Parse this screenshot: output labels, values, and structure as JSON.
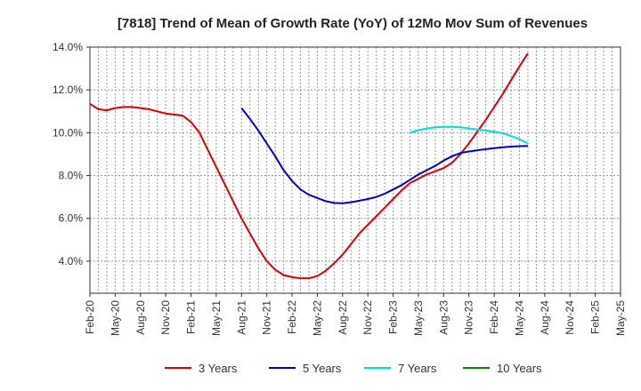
{
  "chart_data": {
    "type": "line",
    "title": "[7818]  Trend of Mean of Growth Rate (YoY) of 12Mo Mov Sum of Revenues",
    "xlabel": "",
    "ylabel": "",
    "ylim": [
      2.5,
      14.0
    ],
    "yticks": [
      4.0,
      6.0,
      8.0,
      10.0,
      12.0,
      14.0
    ],
    "ytick_labels": [
      "4.0%",
      "6.0%",
      "8.0%",
      "10.0%",
      "12.0%",
      "14.0%"
    ],
    "x_tick_labels": [
      "Feb-20",
      "May-20",
      "Aug-20",
      "Nov-20",
      "Feb-21",
      "May-21",
      "Aug-21",
      "Nov-21",
      "Feb-22",
      "May-22",
      "Aug-22",
      "Nov-22",
      "Feb-23",
      "May-23",
      "Aug-23",
      "Nov-23",
      "Feb-24",
      "May-24",
      "Aug-24",
      "Nov-24",
      "Feb-25",
      "May-25"
    ],
    "x_range_months": [
      0,
      63
    ],
    "grid": true,
    "legend_position": "bottom",
    "series": [
      {
        "name": "3 Years",
        "color": "#dd0000",
        "points": [
          [
            0,
            11.35
          ],
          [
            1,
            11.1
          ],
          [
            2,
            11.05
          ],
          [
            3,
            11.15
          ],
          [
            4,
            11.2
          ],
          [
            5,
            11.2
          ],
          [
            6,
            11.15
          ],
          [
            7,
            11.1
          ],
          [
            8,
            11.0
          ],
          [
            9,
            10.9
          ],
          [
            10,
            10.85
          ],
          [
            11,
            10.8
          ],
          [
            12,
            10.5
          ],
          [
            13,
            10.0
          ],
          [
            14,
            9.2
          ],
          [
            15,
            8.4
          ],
          [
            16,
            7.6
          ],
          [
            17,
            6.8
          ],
          [
            18,
            6.0
          ],
          [
            19,
            5.3
          ],
          [
            20,
            4.6
          ],
          [
            21,
            4.0
          ],
          [
            22,
            3.6
          ],
          [
            23,
            3.35
          ],
          [
            24,
            3.25
          ],
          [
            25,
            3.2
          ],
          [
            26,
            3.2
          ],
          [
            27,
            3.3
          ],
          [
            28,
            3.55
          ],
          [
            29,
            3.9
          ],
          [
            30,
            4.3
          ],
          [
            31,
            4.8
          ],
          [
            32,
            5.3
          ],
          [
            33,
            5.7
          ],
          [
            34,
            6.1
          ],
          [
            35,
            6.5
          ],
          [
            36,
            6.9
          ],
          [
            37,
            7.3
          ],
          [
            38,
            7.65
          ],
          [
            39,
            7.85
          ],
          [
            40,
            8.05
          ],
          [
            41,
            8.2
          ],
          [
            42,
            8.35
          ],
          [
            43,
            8.6
          ],
          [
            44,
            9.0
          ],
          [
            45,
            9.5
          ],
          [
            46,
            10.05
          ],
          [
            47,
            10.6
          ],
          [
            48,
            11.2
          ],
          [
            49,
            11.8
          ],
          [
            50,
            12.45
          ],
          [
            51,
            13.1
          ],
          [
            52,
            13.7
          ]
        ]
      },
      {
        "name": "5 Years",
        "color": "#0000cc",
        "points": [
          [
            18,
            11.15
          ],
          [
            19,
            10.65
          ],
          [
            20,
            10.1
          ],
          [
            21,
            9.5
          ],
          [
            22,
            8.9
          ],
          [
            23,
            8.25
          ],
          [
            24,
            7.75
          ],
          [
            25,
            7.35
          ],
          [
            26,
            7.1
          ],
          [
            27,
            6.95
          ],
          [
            28,
            6.8
          ],
          [
            29,
            6.72
          ],
          [
            30,
            6.7
          ],
          [
            31,
            6.75
          ],
          [
            32,
            6.82
          ],
          [
            33,
            6.9
          ],
          [
            34,
            7.0
          ],
          [
            35,
            7.15
          ],
          [
            36,
            7.35
          ],
          [
            37,
            7.55
          ],
          [
            38,
            7.8
          ],
          [
            39,
            8.05
          ],
          [
            40,
            8.25
          ],
          [
            41,
            8.45
          ],
          [
            42,
            8.7
          ],
          [
            43,
            8.9
          ],
          [
            44,
            9.05
          ],
          [
            45,
            9.12
          ],
          [
            46,
            9.18
          ],
          [
            47,
            9.23
          ],
          [
            48,
            9.28
          ],
          [
            49,
            9.32
          ],
          [
            50,
            9.35
          ],
          [
            51,
            9.37
          ],
          [
            52,
            9.38
          ]
        ]
      },
      {
        "name": "7 Years",
        "color": "#00dddd",
        "points": [
          [
            38,
            10.0
          ],
          [
            39,
            10.12
          ],
          [
            40,
            10.2
          ],
          [
            41,
            10.25
          ],
          [
            42,
            10.27
          ],
          [
            43,
            10.27
          ],
          [
            44,
            10.25
          ],
          [
            45,
            10.2
          ],
          [
            46,
            10.15
          ],
          [
            47,
            10.1
          ],
          [
            48,
            10.05
          ],
          [
            49,
            9.98
          ],
          [
            50,
            9.85
          ],
          [
            51,
            9.7
          ],
          [
            52,
            9.5
          ]
        ]
      },
      {
        "name": "10 Years",
        "color": "#008800",
        "points": []
      }
    ]
  }
}
